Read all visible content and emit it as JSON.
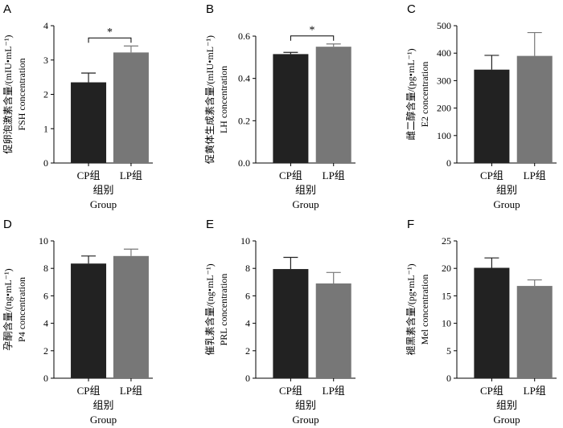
{
  "chart_data": [
    {
      "panel": "A",
      "type": "bar",
      "categories": [
        "CP组",
        "LP组"
      ],
      "values": [
        2.35,
        3.22
      ],
      "errors": [
        0.27,
        0.19
      ],
      "ylim": [
        0,
        4
      ],
      "yticks": [
        0,
        1,
        2,
        3,
        4
      ],
      "ylabel_line1": "促卵泡激素含量/(mIU•mL⁻¹)",
      "ylabel_line2": "FSH concentration",
      "xlabel_line1": "组别",
      "xlabel_line2": "Group",
      "significance": "*",
      "grid": false
    },
    {
      "panel": "B",
      "type": "bar",
      "categories": [
        "CP组",
        "LP组"
      ],
      "values": [
        0.515,
        0.55
      ],
      "errors": [
        0.008,
        0.013
      ],
      "ylim": [
        0,
        0.6
      ],
      "yticks": [
        0,
        0.2,
        0.4,
        0.6
      ],
      "ylabel_line1": "促黄体生成素含量/(mIU•mL⁻¹)",
      "ylabel_line2": "LH concentration",
      "xlabel_line1": "组别",
      "xlabel_line2": "Group",
      "significance": "*",
      "grid": false
    },
    {
      "panel": "C",
      "type": "bar",
      "categories": [
        "CP组",
        "LP组"
      ],
      "values": [
        340,
        390
      ],
      "errors": [
        52,
        85
      ],
      "ylim": [
        0,
        500
      ],
      "yticks": [
        0,
        100,
        200,
        300,
        400,
        500
      ],
      "ylabel_line1": "雌二醇含量/(pg•mL⁻¹)",
      "ylabel_line2": "E2 concentration",
      "xlabel_line1": "组别",
      "xlabel_line2": "Group",
      "significance": "",
      "grid": false
    },
    {
      "panel": "D",
      "type": "bar",
      "categories": [
        "CP组",
        "LP组"
      ],
      "values": [
        8.35,
        8.9
      ],
      "errors": [
        0.55,
        0.5
      ],
      "ylim": [
        0,
        10
      ],
      "yticks": [
        0,
        2,
        4,
        6,
        8,
        10
      ],
      "ylabel_line1": "孕酮含量/(ng•mL⁻¹)",
      "ylabel_line2": "P4 concentration",
      "xlabel_line1": "组别",
      "xlabel_line2": "Group",
      "significance": "",
      "grid": false
    },
    {
      "panel": "E",
      "type": "bar",
      "categories": [
        "CP组",
        "LP组"
      ],
      "values": [
        7.95,
        6.9
      ],
      "errors": [
        0.85,
        0.8
      ],
      "ylim": [
        0,
        10
      ],
      "yticks": [
        0,
        2,
        4,
        6,
        8,
        10
      ],
      "ylabel_line1": "催乳素含量/(ng•mL⁻¹)",
      "ylabel_line2": "PRL concentration",
      "xlabel_line1": "组别",
      "xlabel_line2": "Group",
      "significance": "",
      "grid": false
    },
    {
      "panel": "F",
      "type": "bar",
      "categories": [
        "CP组",
        "LP组"
      ],
      "values": [
        20.1,
        16.8
      ],
      "errors": [
        1.8,
        1.1
      ],
      "ylim": [
        0,
        25
      ],
      "yticks": [
        0,
        5,
        10,
        15,
        20,
        25
      ],
      "ylabel_line1": "褪黑素含量/(pg•mL⁻¹)",
      "ylabel_line2": "Mel concentration",
      "xlabel_line1": "组别",
      "xlabel_line2": "Group",
      "significance": "",
      "grid": false
    }
  ],
  "colors": {
    "cp_bar": "#222222",
    "lp_bar": "#777777",
    "axis": "#000000"
  }
}
